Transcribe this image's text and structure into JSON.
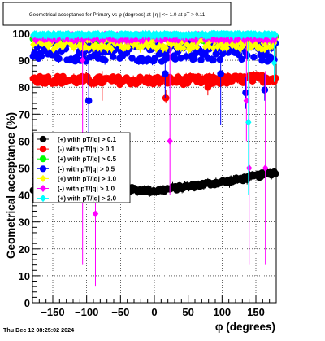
{
  "chart_data": {
    "type": "scatter",
    "title": "Geometrical acceptance for Primary vs φ (degrees) at | η | <= 1.0 at pT > 0.11",
    "xlabel": "φ (degrees)",
    "ylabel": "Geometrical acceptance (%)",
    "xlim": [
      -180,
      180
    ],
    "ylim": [
      0,
      100
    ],
    "x_ticks": [
      -150,
      -100,
      -50,
      0,
      50,
      100,
      150
    ],
    "y_ticks": [
      0,
      10,
      20,
      30,
      40,
      50,
      60,
      70,
      80,
      90,
      100
    ],
    "grid": true,
    "legend_position": "middle-left",
    "n_bins": 180,
    "series": [
      {
        "name": "(+) with pT/|q| > 0.1",
        "color": "#000000",
        "marker": "circle",
        "profile": {
          "phi": [
            -180,
            -120,
            -60,
            0,
            60,
            120,
            180
          ],
          "value": [
            41.5,
            42,
            42.5,
            41.5,
            43.5,
            45.5,
            48.5
          ]
        },
        "noise": 0.8,
        "outliers": []
      },
      {
        "name": "(-) with pT/|q| > 0.1",
        "color": "#ff0000",
        "marker": "circle",
        "profile": {
          "phi": [
            -180,
            -90,
            0,
            90,
            180
          ],
          "value": [
            83,
            82.5,
            82.5,
            82.5,
            83.5
          ]
        },
        "noise": 1.5,
        "outliers": [
          {
            "phi": -77,
            "y": 83,
            "lo": 75,
            "hi": 86
          },
          {
            "phi": 17,
            "y": 76,
            "lo": 74,
            "hi": 79
          },
          {
            "phi": 79,
            "y": 80,
            "lo": 77,
            "hi": 82
          }
        ]
      },
      {
        "name": "(+) with pT/|q| > 0.5",
        "color": "#00ff00",
        "marker": "circle",
        "profile": {
          "phi": [
            -180,
            180
          ],
          "value": [
            98,
            98
          ]
        },
        "noise": 1.0,
        "outliers": []
      },
      {
        "name": "(-) with pT/|q| > 0.5",
        "color": "#0000ff",
        "marker": "circle",
        "profile": {
          "phi": [
            -180,
            180
          ],
          "value": [
            93,
            93
          ]
        },
        "noise": 3.5,
        "outliers": [
          {
            "phi": -97,
            "y": 75,
            "lo": 55,
            "hi": 99
          },
          {
            "phi": 16,
            "y": 85,
            "lo": 76,
            "hi": 93
          },
          {
            "phi": 98,
            "y": 85,
            "lo": 66,
            "hi": 98
          },
          {
            "phi": 135,
            "y": 78,
            "lo": 72,
            "hi": 84
          },
          {
            "phi": 163,
            "y": 79,
            "lo": 75,
            "hi": 85
          }
        ]
      },
      {
        "name": "(+) with pT/|q| > 1.0",
        "color": "#ffff00",
        "marker": "diamond",
        "profile": {
          "phi": [
            -180,
            180
          ],
          "value": [
            96,
            96
          ]
        },
        "noise": 2.0,
        "outliers": []
      },
      {
        "name": "(-) with pT/|q| > 1.0",
        "color": "#ff00ff",
        "marker": "diamond",
        "profile": {
          "phi": [
            -180,
            180
          ],
          "value": [
            98.5,
            98.5
          ]
        },
        "noise": 1.2,
        "outliers": [
          {
            "phi": -87,
            "y": 33,
            "lo": 6,
            "hi": 62
          },
          {
            "phi": 23,
            "y": 60,
            "lo": 40,
            "hi": 95
          },
          {
            "phi": 136,
            "y": 75,
            "lo": 60,
            "hi": 98
          },
          {
            "phi": 140,
            "y": 50,
            "lo": 14,
            "hi": 86
          },
          {
            "phi": 164,
            "y": 50,
            "lo": 14,
            "hi": 86
          },
          {
            "phi": -106,
            "y": 90,
            "lo": 14,
            "hi": 99
          }
        ]
      },
      {
        "name": "(+) with pT/|q| > 2.0",
        "color": "#00ffff",
        "marker": "diamond",
        "profile": {
          "phi": [
            -180,
            180
          ],
          "value": [
            99.5,
            99.5
          ]
        },
        "noise": 0.4,
        "outliers": [
          {
            "phi": 139,
            "y": 67,
            "lo": 40,
            "hi": 97
          },
          {
            "phi": 177,
            "y": 89,
            "lo": 82,
            "hi": 96
          }
        ]
      }
    ]
  },
  "footer": {
    "timestamp": "Thu Dec 12 08:25:02 2024"
  }
}
